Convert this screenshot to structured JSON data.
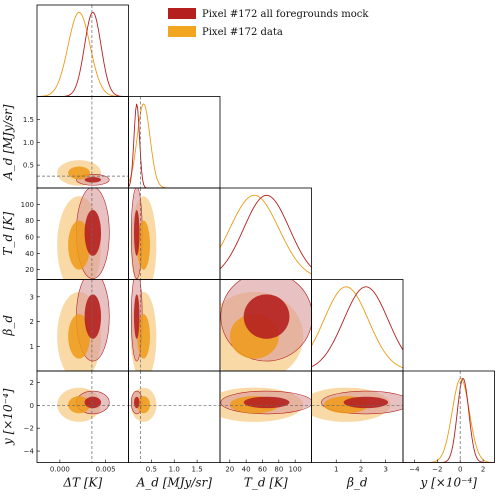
{
  "chart_data": {
    "type": "corner",
    "legend": [
      {
        "label": "Pixel #172 all foregrounds mock",
        "color": "#b22222"
      },
      {
        "label": "Pixel #172 data",
        "color": "#f2a51f"
      }
    ],
    "colors": {
      "mock_dark": "#b5201f",
      "mock_light": "#d99a9a",
      "data_dark": "#ee9a17",
      "data_light": "#f8d398",
      "fiducial": "#666666"
    },
    "params": [
      {
        "name": "dT",
        "label": "ΔT [K]",
        "range": [
          -0.0025,
          0.0075
        ],
        "ticks": [
          0.0,
          0.005
        ],
        "tick_labels": [
          "0.000",
          "0.005"
        ],
        "fiducial": 0.0035,
        "mock": {
          "mean": 0.0036,
          "sd": 0.0009
        },
        "data": {
          "mean": 0.0021,
          "sd": 0.0012
        }
      },
      {
        "name": "Ad",
        "label": "A_d [MJy/sr]",
        "range": [
          0.0,
          2.0
        ],
        "ticks": [
          0.5,
          1.0,
          1.5
        ],
        "tick_labels": [
          "0.5",
          "1.0",
          "1.5"
        ],
        "fiducial": 0.26,
        "mock": {
          "mean": 0.18,
          "sd": 0.06
        },
        "data": {
          "mean": 0.33,
          "sd": 0.14
        }
      },
      {
        "name": "Td",
        "label": "T_d [K]",
        "range": [
          8,
          120
        ],
        "ticks": [
          20,
          40,
          60,
          80,
          100
        ],
        "tick_labels": [
          "20",
          "40",
          "60",
          "80",
          "100"
        ],
        "fiducial": null,
        "mock": {
          "mean": 65,
          "sd": 28
        },
        "data": {
          "mean": 50,
          "sd": 30
        }
      },
      {
        "name": "bd",
        "label": "β_d",
        "range": [
          0.0,
          3.7
        ],
        "ticks": [
          1,
          2,
          3
        ],
        "tick_labels": [
          "1",
          "2",
          "3"
        ],
        "fiducial": null,
        "mock": {
          "mean": 2.2,
          "sd": 0.9
        },
        "data": {
          "mean": 1.4,
          "sd": 0.9
        }
      },
      {
        "name": "y",
        "label": "y [×10⁻⁴]",
        "range": [
          -5,
          3
        ],
        "ticks": [
          -4,
          -2,
          0,
          2
        ],
        "tick_labels": [
          "−4",
          "−2",
          "0",
          "2"
        ],
        "fiducial": 0.0,
        "mock": {
          "mean": 0.25,
          "sd": 0.5
        },
        "data": {
          "mean": 0.05,
          "sd": 0.75
        }
      }
    ],
    "diag_ytick_labels": {
      "Ad": [
        "0.5",
        "1.0",
        "1.5"
      ],
      "Td": [
        "20",
        "40",
        "60",
        "80",
        "100"
      ],
      "bd": [
        "1",
        "2",
        "3"
      ],
      "y": [
        "−4",
        "−2",
        "0",
        "2"
      ]
    },
    "grid": false
  }
}
